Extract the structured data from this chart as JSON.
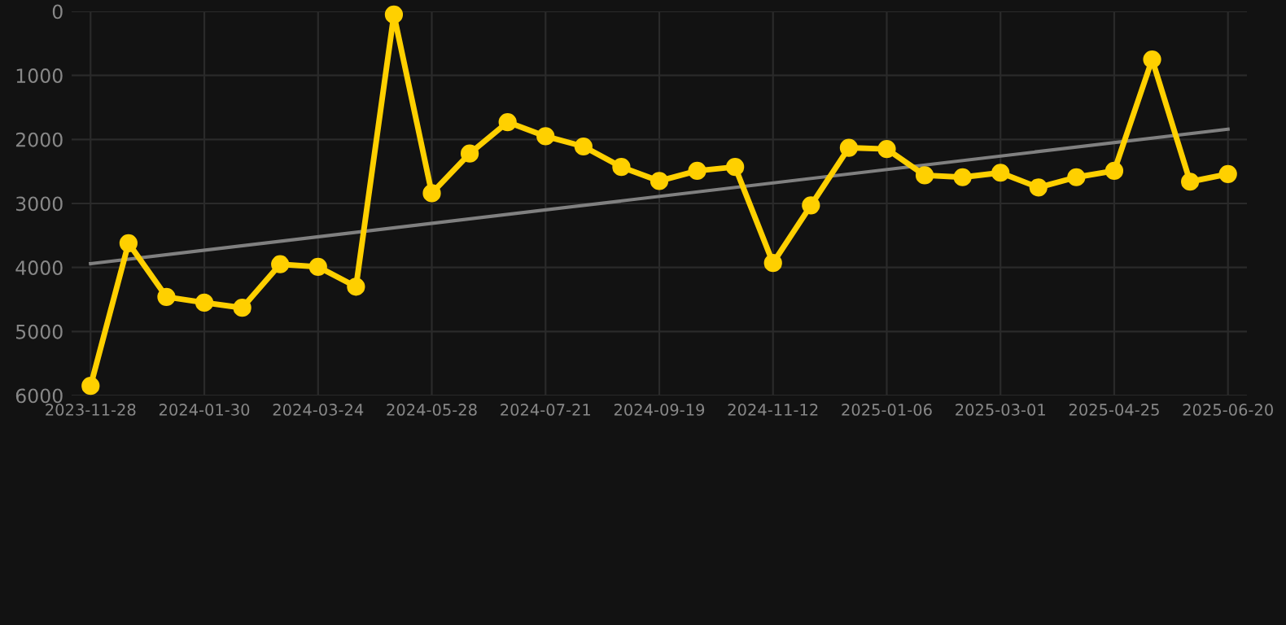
{
  "chart_data": {
    "type": "line",
    "categories": [
      "2023-11-28",
      null,
      null,
      "2024-01-30",
      null,
      null,
      "2024-03-24",
      null,
      null,
      "2024-05-28",
      null,
      null,
      "2024-07-21",
      null,
      null,
      "2024-09-19",
      null,
      null,
      "2024-11-12",
      null,
      null,
      "2025-01-06",
      null,
      null,
      "2025-03-01",
      null,
      null,
      "2025-04-25",
      null,
      null,
      "2025-06-20"
    ],
    "series": [
      {
        "color": "#ffd000",
        "marker": "circle",
        "values": [
          5850,
          3620,
          4460,
          4550,
          4630,
          3950,
          3990,
          4300,
          50,
          2840,
          2220,
          1730,
          1950,
          2110,
          2430,
          2650,
          2490,
          2430,
          3930,
          3030,
          2130,
          2150,
          2560,
          2590,
          2520,
          2750,
          2590,
          2490,
          750,
          2660,
          2540
        ]
      },
      {
        "color": "#808080",
        "marker": "none",
        "values": [
          3940,
          null,
          null,
          null,
          null,
          null,
          null,
          null,
          null,
          null,
          null,
          null,
          null,
          null,
          null,
          null,
          null,
          null,
          null,
          null,
          null,
          null,
          null,
          null,
          null,
          null,
          null,
          null,
          null,
          null,
          1840
        ]
      }
    ],
    "ylim": [
      6000,
      0
    ],
    "yticks": [
      0,
      1000,
      2000,
      3000,
      4000,
      5000,
      6000
    ],
    "grid": true,
    "line_style": "solid"
  }
}
